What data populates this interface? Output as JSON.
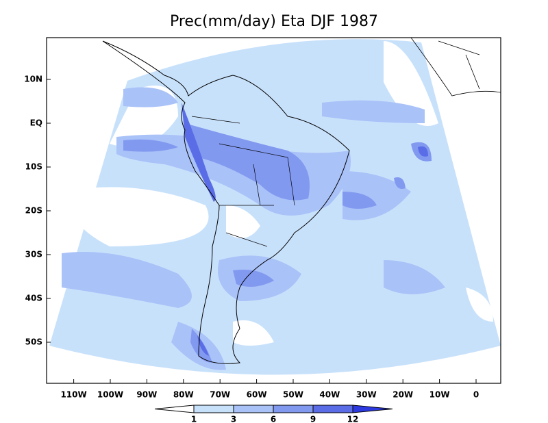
{
  "title": "Prec(mm/day) Eta DJF 1987",
  "x_axis": {
    "labels": [
      "110W",
      "100W",
      "90W",
      "80W",
      "70W",
      "60W",
      "50W",
      "40W",
      "30W",
      "20W",
      "10W",
      "0"
    ]
  },
  "y_axis": {
    "labels": [
      "10N",
      "EQ",
      "10S",
      "20S",
      "30S",
      "40S",
      "50S"
    ]
  },
  "colorbar": {
    "labels": [
      1,
      3,
      6,
      9,
      12
    ],
    "colors": [
      "#ffffff",
      "#c8e1fb",
      "#a9c2f8",
      "#8299f0",
      "#5a6de6",
      "#2d3ae0"
    ]
  }
}
